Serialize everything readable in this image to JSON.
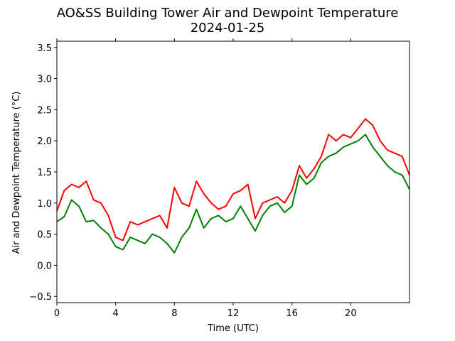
{
  "chart_data": {
    "type": "line",
    "title": "AO&SS Building Tower Air and Dewpoint Temperature",
    "subtitle": "2024-01-25",
    "xlabel": "Time (UTC)",
    "ylabel": "Air and Dewpoint Temperature (°C)",
    "xlim": [
      0,
      24
    ],
    "ylim": [
      -0.6,
      3.6
    ],
    "xticks": [
      0,
      4,
      8,
      12,
      16,
      20
    ],
    "xtick_labels": [
      "0",
      "4",
      "8",
      "12",
      "16",
      "20"
    ],
    "yticks": [
      -0.5,
      0.0,
      0.5,
      1.0,
      1.5,
      2.0,
      2.5,
      3.0,
      3.5
    ],
    "ytick_labels": [
      "−0.5",
      "0.0",
      "0.5",
      "1.0",
      "1.5",
      "2.0",
      "2.5",
      "3.0",
      "3.5"
    ],
    "grid": false,
    "x": [
      0,
      0.5,
      1,
      1.5,
      2,
      2.5,
      3,
      3.5,
      4,
      4.5,
      5,
      5.5,
      6,
      6.5,
      7,
      7.5,
      8,
      8.5,
      9,
      9.5,
      10,
      10.5,
      11,
      11.5,
      12,
      12.5,
      13,
      13.5,
      14,
      14.5,
      15,
      15.5,
      16,
      16.5,
      17,
      17.5,
      18,
      18.5,
      19,
      19.5,
      20,
      20.5,
      21,
      21.5,
      22,
      22.5,
      23,
      23.5,
      24
    ],
    "series": [
      {
        "color": "#ff0000",
        "values": [
          0.87,
          1.2,
          1.3,
          1.25,
          1.35,
          1.05,
          1.0,
          0.8,
          0.45,
          0.4,
          0.7,
          0.65,
          0.7,
          0.75,
          0.8,
          0.6,
          1.25,
          1.0,
          0.95,
          1.35,
          1.15,
          1.0,
          0.9,
          0.95,
          1.15,
          1.2,
          1.3,
          0.75,
          1.0,
          1.05,
          1.1,
          1.0,
          1.2,
          1.6,
          1.4,
          1.55,
          1.75,
          2.1,
          2.0,
          2.1,
          2.05,
          2.2,
          2.35,
          2.25,
          2.0,
          1.85,
          1.8,
          1.75,
          1.45
        ]
      },
      {
        "color": "#008000",
        "values": [
          0.7,
          0.78,
          1.05,
          0.95,
          0.7,
          0.72,
          0.6,
          0.5,
          0.3,
          0.25,
          0.45,
          0.4,
          0.35,
          0.5,
          0.45,
          0.35,
          0.2,
          0.45,
          0.6,
          0.9,
          0.6,
          0.75,
          0.8,
          0.7,
          0.75,
          0.95,
          0.75,
          0.55,
          0.8,
          0.95,
          1.0,
          0.85,
          0.95,
          1.45,
          1.3,
          1.4,
          1.65,
          1.75,
          1.8,
          1.9,
          1.95,
          2.0,
          2.1,
          1.9,
          1.75,
          1.6,
          1.5,
          1.45,
          1.22
        ]
      }
    ]
  }
}
